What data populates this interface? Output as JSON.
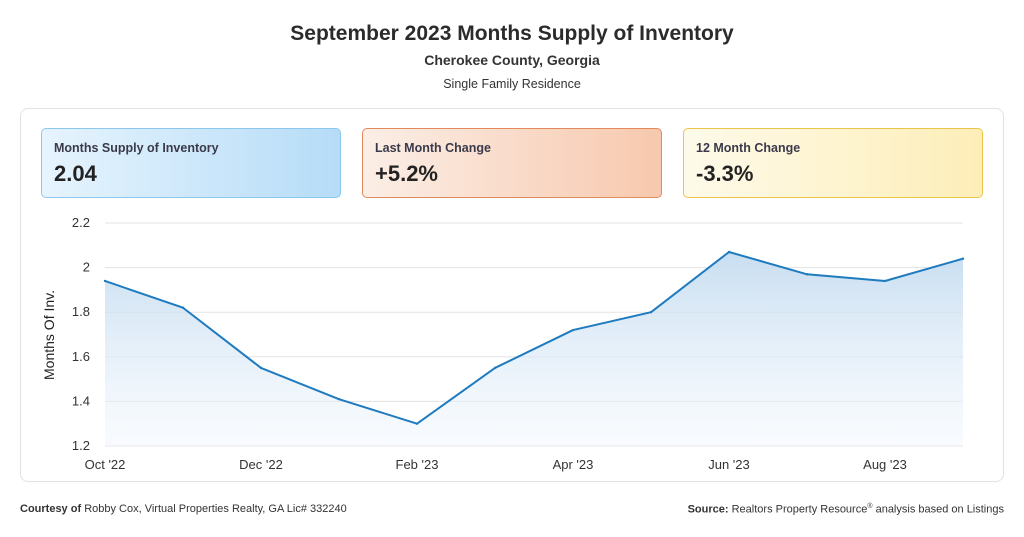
{
  "header": {
    "title": "September 2023 Months Supply of Inventory",
    "subtitle": "Cherokee County, Georgia",
    "property_type": "Single Family Residence"
  },
  "cards": [
    {
      "label": "Months Supply of Inventory",
      "value": "2.04",
      "color": "#8cc8ee"
    },
    {
      "label": "Last Month Change",
      "value": "+5.2%",
      "color": "#e38a5c"
    },
    {
      "label": "12 Month Change",
      "value": "-3.3%",
      "color": "#e9c64a"
    }
  ],
  "chart_data": {
    "type": "area",
    "ylabel": "Months Of Inv.",
    "ylim": [
      1.2,
      2.2
    ],
    "yticks": [
      "1.2",
      "1.4",
      "1.6",
      "1.8",
      "2",
      "2.2"
    ],
    "x": [
      "Oct '22",
      "Nov '22",
      "Dec '22",
      "Jan '23",
      "Feb '23",
      "Mar '23",
      "Apr '23",
      "May '23",
      "Jun '23",
      "Jul '23",
      "Aug '23",
      "Sep '23"
    ],
    "xtick_labels": [
      "Oct '22",
      "Dec '22",
      "Feb '23",
      "Apr '23",
      "Jun '23",
      "Aug '23"
    ],
    "series": [
      {
        "values": [
          1.94,
          1.82,
          1.55,
          1.41,
          1.3,
          1.55,
          1.72,
          1.8,
          2.07,
          1.97,
          1.94,
          2.04
        ]
      }
    ],
    "line_color": "#1f7bbf",
    "fill_color": "#cfe2f2",
    "grid": true
  },
  "footer": {
    "courtesy_label": "Courtesy of",
    "courtesy_text": "Robby Cox, Virtual Properties Realty, GA Lic# 332240",
    "source_label": "Source:",
    "source_text": "Realtors Property Resource",
    "source_mark": "®",
    "source_suffix": "analysis based on Listings"
  }
}
